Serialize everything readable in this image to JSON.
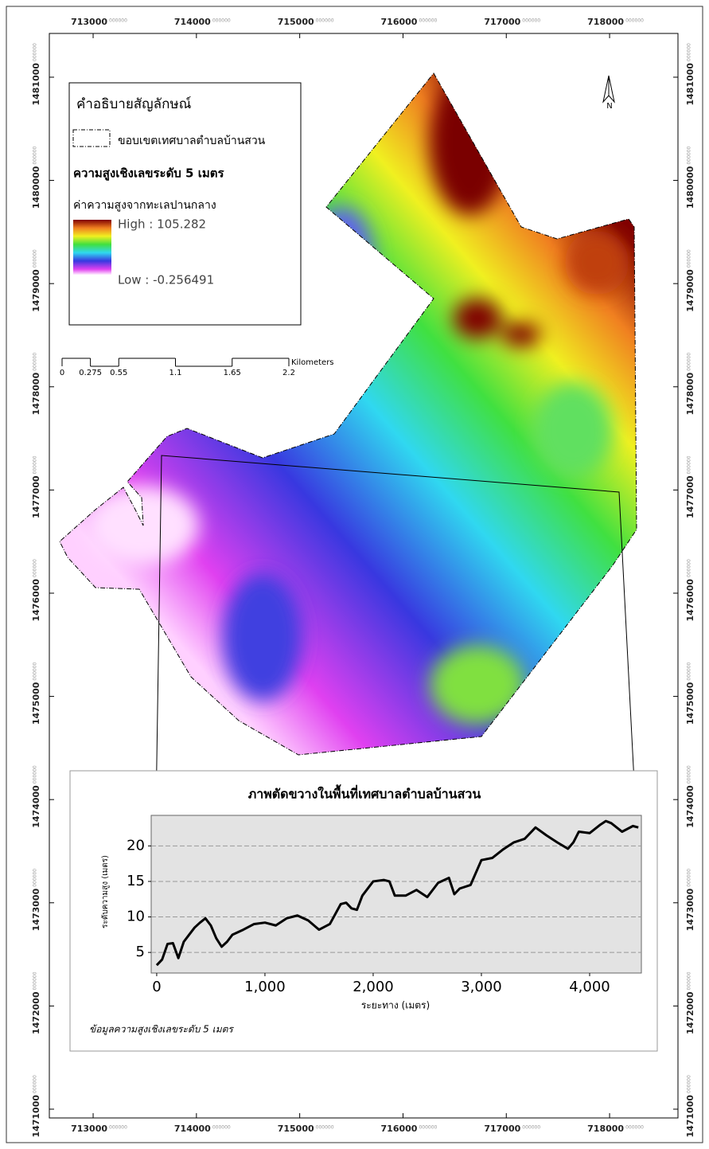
{
  "map": {
    "xticks": [
      713000,
      714000,
      715000,
      716000,
      717000,
      718000
    ],
    "yticks": [
      1481000,
      1480000,
      1479000,
      1478000,
      1477000,
      1476000,
      1475000,
      1474000,
      1473000,
      1472000,
      1471000
    ],
    "tick_suffix": "000000",
    "xlim": [
      712576,
      718662
    ],
    "ylim": [
      1470915,
      1481424
    ],
    "north": "N",
    "legend": {
      "title": "คำอธิบายสัญลักษณ์",
      "boundary": "ขอบเขตเทศบาลตำบลบ้านสวน",
      "dem": "ความสูงเชิงเลขระดับ 5 เมตร",
      "elevation": "ค่าความสูงจากทะเลปานกลาง",
      "high": "High : 105.282",
      "low": "Low : -0.256491"
    },
    "scale_bar": {
      "ticks": [
        0,
        0.275,
        0.55,
        1.1,
        1.65,
        2.2
      ],
      "unit": "Kilometers"
    }
  },
  "chart_data": {
    "type": "line",
    "title": "ภาพตัดขวางในพื้นที่เทศบาลตำบลบ้านสวน",
    "xlabel": "ระยะทาง (เมตร)",
    "ylabel": "ระดับความสูง (เมตร)",
    "note": "ข้อมูลความสูงเชิงเลขระดับ 5 เมตร",
    "x": [
      0,
      50,
      100,
      150,
      200,
      250,
      300,
      350,
      400,
      450,
      500,
      550,
      600,
      650,
      700,
      800,
      900,
      1000,
      1100,
      1200,
      1300,
      1400,
      1500,
      1600,
      1700,
      1750,
      1800,
      1850,
      1900,
      2000,
      2100,
      2150,
      2200,
      2300,
      2400,
      2500,
      2600,
      2700,
      2750,
      2800,
      2900,
      3000,
      3100,
      3200,
      3300,
      3400,
      3500,
      3600,
      3700,
      3800,
      3850,
      3900,
      4000,
      4100,
      4150,
      4200,
      4300,
      4400,
      4450
    ],
    "values": [
      3.2,
      4,
      6.2,
      6.3,
      4.2,
      6.5,
      7.5,
      8.5,
      9.2,
      9.8,
      8.8,
      7,
      5.8,
      6.5,
      7.5,
      8.2,
      9,
      9.2,
      8.8,
      9.8,
      10.2,
      9.5,
      8.2,
      9,
      11.8,
      12,
      11.2,
      11,
      13,
      15,
      15.2,
      15,
      13,
      13,
      13.8,
      12.8,
      14.8,
      15.5,
      13.2,
      14,
      14.5,
      18,
      18.3,
      19.5,
      20.5,
      21,
      22.6,
      21.5,
      20.5,
      19.6,
      20.5,
      22,
      21.8,
      23,
      23.5,
      23.2,
      22,
      22.8,
      22.6
    ],
    "color": "#000000",
    "xlim": [
      -51,
      4478
    ],
    "ylim": [
      2.1,
      24.3
    ],
    "xticks": [
      0,
      {
        "value": 1000,
        "label": "1,000"
      },
      {
        "value": 2000,
        "label": "2,000"
      },
      {
        "value": 3000,
        "label": "3,000"
      },
      {
        "value": 4000,
        "label": "4,000"
      }
    ],
    "yticks": [
      5,
      10,
      15,
      20
    ],
    "grid": true
  }
}
